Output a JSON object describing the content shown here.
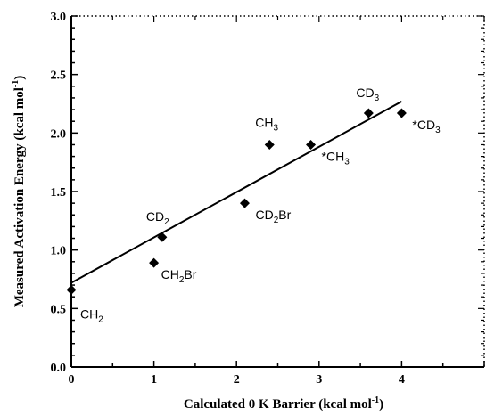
{
  "chart_data": {
    "type": "scatter",
    "xlabel_main": "Calculated 0 K Barrier (kcal mol",
    "xlabel_sup": "-1",
    "xlabel_end": ")",
    "ylabel_main": "Measured Activation Energy (kcal mol",
    "ylabel_sup": "-1",
    "ylabel_end": ")",
    "xlim": [
      0,
      5
    ],
    "ylim": [
      0.0,
      3.0
    ],
    "x_ticks": [
      "0",
      "1",
      "2",
      "3",
      "4"
    ],
    "y_ticks": [
      "0.0",
      "0.5",
      "1.0",
      "1.5",
      "2.0",
      "2.5",
      "3.0"
    ],
    "points": [
      {
        "x": 0.0,
        "y": 0.66,
        "prefix": "",
        "base": "CH",
        "sub": "2",
        "suffix": ""
      },
      {
        "x": 1.0,
        "y": 0.89,
        "prefix": "",
        "base": "CH",
        "sub": "2",
        "suffix": "Br"
      },
      {
        "x": 1.1,
        "y": 1.11,
        "prefix": "",
        "base": "CD",
        "sub": "2",
        "suffix": ""
      },
      {
        "x": 2.1,
        "y": 1.4,
        "prefix": "",
        "base": "CD",
        "sub": "2",
        "suffix": "Br"
      },
      {
        "x": 2.4,
        "y": 1.9,
        "prefix": "",
        "base": "CH",
        "sub": "3",
        "suffix": ""
      },
      {
        "x": 2.9,
        "y": 1.9,
        "prefix": "*",
        "base": "CH",
        "sub": "3",
        "suffix": ""
      },
      {
        "x": 3.6,
        "y": 2.17,
        "prefix": "",
        "base": "CD",
        "sub": "3",
        "suffix": ""
      },
      {
        "x": 4.0,
        "y": 2.17,
        "prefix": "*",
        "base": "CD",
        "sub": "3",
        "suffix": ""
      }
    ],
    "fit_line": {
      "x": [
        0.0,
        4.0
      ],
      "y": [
        0.72,
        2.27
      ]
    },
    "grid": false,
    "legend": "none"
  }
}
